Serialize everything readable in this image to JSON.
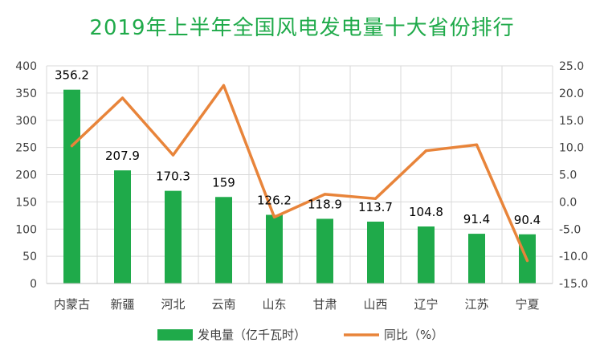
{
  "chart_data": {
    "type": "bar",
    "title": "2019年上半年全国风电发电量十大省份排行",
    "categories": [
      "内蒙古",
      "新疆",
      "河北",
      "云南",
      "山东",
      "甘肃",
      "山西",
      "辽宁",
      "江苏",
      "宁夏"
    ],
    "series": [
      {
        "name": "发电量（亿千瓦时）",
        "type": "bar",
        "axis": "left",
        "color": "#1faa4a",
        "values": [
          356.2,
          207.9,
          170.3,
          159,
          126.2,
          118.9,
          113.7,
          104.8,
          91.4,
          90.4
        ],
        "labels": [
          "356.2",
          "207.9",
          "170.3",
          "159",
          "126.2",
          "118.9",
          "113.7",
          "104.8",
          "91.4",
          "90.4"
        ]
      },
      {
        "name": "同比（%）",
        "type": "line",
        "axis": "right",
        "color": "#e8843a",
        "values": [
          10.3,
          19.1,
          8.6,
          21.4,
          -2.8,
          1.4,
          0.6,
          9.4,
          10.5,
          -10.8
        ]
      }
    ],
    "y_left": {
      "min": 0,
      "max": 400,
      "step": 50,
      "tick_labels": [
        "0",
        "50",
        "100",
        "150",
        "200",
        "250",
        "300",
        "350",
        "400"
      ]
    },
    "y_right": {
      "min": -15,
      "max": 25,
      "step": 5,
      "tick_labels": [
        "-15.0",
        "-10.0",
        "-5.0",
        "0.0",
        "5.0",
        "10.0",
        "15.0",
        "20.0",
        "25.0"
      ]
    },
    "grid": true,
    "legend_position": "bottom"
  }
}
